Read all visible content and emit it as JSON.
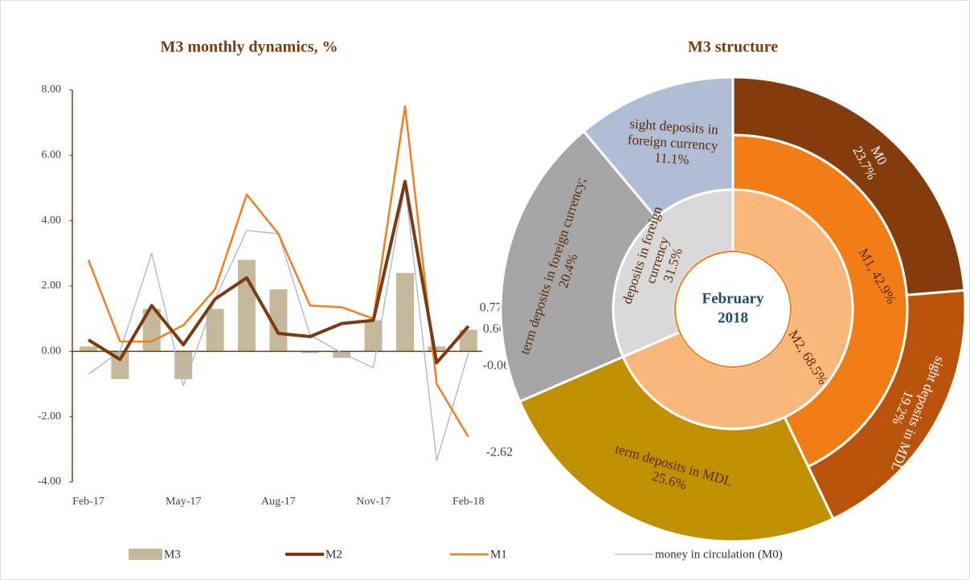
{
  "chart_data": [
    {
      "type": "combo",
      "title": "M3 monthly dynamics, %",
      "categories": [
        "Feb-17",
        null,
        null,
        "May-17",
        null,
        null,
        "Aug-17",
        null,
        null,
        "Nov-17",
        null,
        null,
        "Feb-18"
      ],
      "ylim": [
        -4,
        8
      ],
      "yticks": [
        {
          "value": -4,
          "label": "-4.00"
        },
        {
          "value": -2,
          "label": "-2.00"
        },
        {
          "value": 0,
          "label": "0.00"
        },
        {
          "value": 2,
          "label": "2.00"
        },
        {
          "value": 4,
          "label": "4.00"
        },
        {
          "value": 6,
          "label": "6.00"
        },
        {
          "value": 8,
          "label": "8.00"
        }
      ],
      "series": [
        {
          "name": "M3",
          "type": "bar",
          "color": "#c4b99a",
          "values": [
            0.15,
            -0.85,
            1.3,
            -0.85,
            1.3,
            2.8,
            1.9,
            -0.05,
            -0.2,
            0.95,
            2.4,
            0.15,
            0.66
          ]
        },
        {
          "name": "M2",
          "type": "line",
          "color": "#7b3a10",
          "values": [
            0.35,
            -0.25,
            1.4,
            0.2,
            1.6,
            2.25,
            0.55,
            0.45,
            0.85,
            0.95,
            5.2,
            -0.35,
            0.77
          ]
        },
        {
          "name": "M1",
          "type": "line",
          "color": "#f07f22",
          "values": [
            2.8,
            0.3,
            0.3,
            0.8,
            1.9,
            4.8,
            3.6,
            1.4,
            1.35,
            1.0,
            7.5,
            -1.0,
            -2.62
          ]
        },
        {
          "name": "money in circulation (M0)",
          "type": "line",
          "color": "#a9b4cf",
          "values": [
            -0.7,
            0.0,
            3.0,
            -1.05,
            1.6,
            3.7,
            3.6,
            0.5,
            -0.05,
            -0.5,
            5.1,
            -3.35,
            -0.06
          ]
        }
      ]
    },
    {
      "type": "sunburst",
      "title": "M3 structure",
      "center_label": [
        "February",
        "2018"
      ],
      "nodes": [
        {
          "label": [
            "M2, 68.5%"
          ],
          "value": 68.5,
          "color": "#f9b77c",
          "children": [
            {
              "label": [
                "M1, 42.9%"
              ],
              "value": 42.9,
              "color": "#f27d16",
              "children": [
                {
                  "label": [
                    "M0",
                    "23.7%"
                  ],
                  "value": 23.7,
                  "color": "#843c0c"
                },
                {
                  "label": [
                    "sight deposits in MDL",
                    "19.2%"
                  ],
                  "value": 19.2,
                  "color": "#b9530c"
                }
              ]
            },
            {
              "label": [
                "term deposits in MDL",
                "25.6%"
              ],
              "value": 25.6,
              "color": "#bf9000"
            }
          ]
        },
        {
          "label": [
            "deposits in foreign",
            "currency",
            "31.5%"
          ],
          "value": 31.5,
          "color": "#d9d9d9",
          "children": [
            {
              "label": [
                "term deposits in foreign currency;",
                "20.4%"
              ],
              "value": 20.4,
              "color": "#a6a6a6"
            },
            {
              "label": [
                "sight deposits in",
                "foreign currency",
                "11.1%"
              ],
              "value": 11.1,
              "color": "#b1bdd4"
            }
          ]
        }
      ]
    }
  ]
}
